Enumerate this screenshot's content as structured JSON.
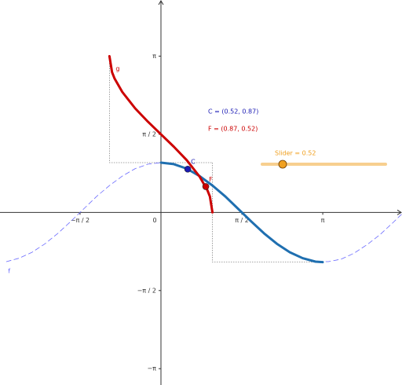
{
  "chart_data": {
    "type": "line",
    "xlim": [
      -3.125,
      4.68
    ],
    "ylim": [
      -3.47,
      4.27
    ],
    "xticks": [
      {
        "value": -1.5708,
        "label": "−π / 2"
      },
      {
        "value": 1.5708,
        "label": "π / 2"
      },
      {
        "value": 3.1416,
        "label": "π"
      }
    ],
    "origin_label": "0",
    "yticks": [
      {
        "value": -3.1416,
        "label": "−π"
      },
      {
        "value": -1.5708,
        "label": "−π / 2"
      },
      {
        "value": 1.5708,
        "label": "π / 2"
      },
      {
        "value": 3.1416,
        "label": "π"
      }
    ],
    "series": [
      {
        "name": "f",
        "color": "#6a6aff",
        "dashed": true,
        "x": [
          -3.0,
          -2.75,
          -2.5,
          -2.25,
          -2.0,
          -1.75,
          -1.5,
          -1.25,
          -1.0,
          -0.75,
          -0.5,
          -0.25,
          0,
          0.25,
          0.5,
          0.75,
          1.0,
          1.25,
          1.5,
          1.75,
          2.0,
          2.25,
          2.5,
          2.75,
          3.0,
          3.25,
          3.5,
          3.75,
          4.0,
          4.25,
          4.5,
          4.75
        ],
        "values": [
          -0.99,
          -0.92,
          -0.8,
          -0.63,
          -0.42,
          -0.18,
          0.07,
          0.32,
          0.54,
          0.73,
          0.88,
          0.97,
          1,
          0.97,
          0.88,
          0.73,
          0.54,
          0.32,
          0.07,
          -0.18,
          -0.42,
          -0.63,
          -0.8,
          -0.92,
          -0.99,
          -0.99,
          -0.94,
          -0.82,
          -0.65,
          -0.45,
          -0.21,
          0.04
        ]
      },
      {
        "color": "#1f6fb0",
        "dashed": false,
        "x": [
          0,
          0.25,
          0.5,
          0.75,
          1.0,
          1.25,
          1.5,
          1.75,
          2.0,
          2.25,
          2.5,
          2.75,
          3.0,
          3.14
        ],
        "values": [
          1,
          0.97,
          0.88,
          0.73,
          0.54,
          0.32,
          0.07,
          -0.18,
          -0.42,
          -0.63,
          -0.8,
          -0.92,
          -0.99,
          -1
        ]
      },
      {
        "name": "g",
        "color": "#cc0000",
        "dashed": false,
        "x": [
          -1,
          -0.95,
          -0.9,
          -0.75,
          -0.5,
          -0.25,
          0,
          0.25,
          0.5,
          0.75,
          0.9,
          0.95,
          1
        ],
        "values": [
          3.14,
          2.82,
          2.69,
          2.42,
          2.09,
          1.82,
          1.57,
          1.32,
          1.05,
          0.72,
          0.45,
          0.32,
          0
        ]
      }
    ],
    "points": [
      {
        "name": "C",
        "x": 0.52,
        "y": 0.87,
        "color": "#1a1ab4"
      },
      {
        "name": "F",
        "x": 0.87,
        "y": 0.52,
        "color": "#cc0000"
      }
    ],
    "annotations": [
      {
        "text": "C = (0.52, 0.87)",
        "color": "#1a1ab4"
      },
      {
        "text": "F = (0.87, 0.52)",
        "color": "#cc0000"
      }
    ],
    "slider": {
      "label": "Slider = 0.52",
      "value": 0.52,
      "min": 0,
      "max": 3.14,
      "color": "#f0a020"
    }
  }
}
